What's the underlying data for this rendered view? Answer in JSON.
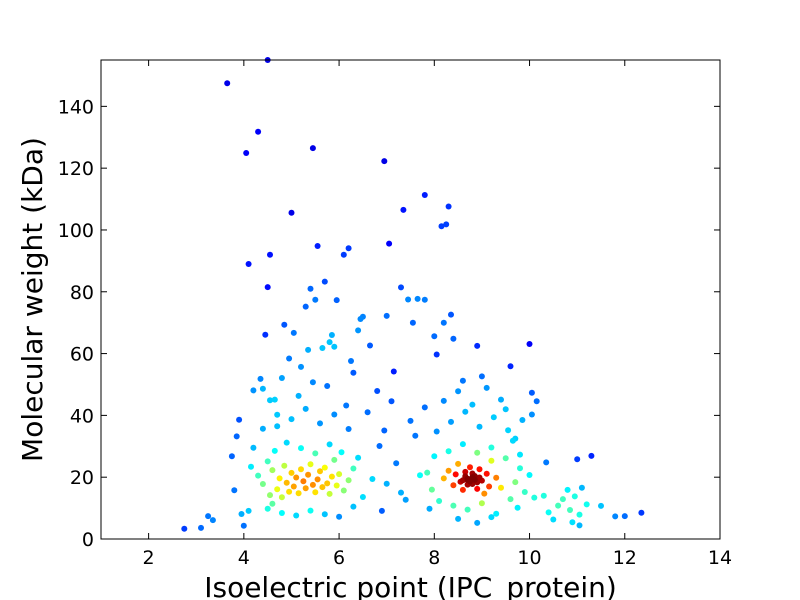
{
  "chart_data": {
    "type": "scatter",
    "title": "",
    "xlabel": "Isoelectric point (IPC_protein)",
    "ylabel": "Molecular weight (kDa)",
    "xlim": [
      1,
      14
    ],
    "ylim": [
      0,
      155
    ],
    "xticks": [
      2,
      4,
      6,
      8,
      10,
      12,
      14
    ],
    "yticks": [
      0,
      20,
      40,
      60,
      80,
      100,
      120,
      140
    ],
    "grid": false,
    "legend": "none",
    "color_note": "points colored by local density: dark red = densest, blue = sparsest",
    "points": [
      [
        2.75,
        3.3
      ],
      [
        3.1,
        3.6
      ],
      [
        3.25,
        7.4
      ],
      [
        3.35,
        6.1
      ],
      [
        3.65,
        147.5
      ],
      [
        3.75,
        26.8
      ],
      [
        3.8,
        15.8
      ],
      [
        3.85,
        33.2
      ],
      [
        3.9,
        38.6
      ],
      [
        3.95,
        8.1
      ],
      [
        4.0,
        4.3
      ],
      [
        4.05,
        124.9
      ],
      [
        4.1,
        89.0
      ],
      [
        4.1,
        9.1
      ],
      [
        4.15,
        23.4
      ],
      [
        4.2,
        48.1
      ],
      [
        4.2,
        29.5
      ],
      [
        4.3,
        131.8
      ],
      [
        4.35,
        51.8
      ],
      [
        4.4,
        48.6
      ],
      [
        4.4,
        35.7
      ],
      [
        4.45,
        66.1
      ],
      [
        4.5,
        155.0
      ],
      [
        4.5,
        81.5
      ],
      [
        4.55,
        92.0
      ],
      [
        4.6,
        11.4
      ],
      [
        4.65,
        45.1
      ],
      [
        4.7,
        40.2
      ],
      [
        4.8,
        52.1
      ],
      [
        4.85,
        69.3
      ],
      [
        4.95,
        58.4
      ],
      [
        5.0,
        105.6
      ],
      [
        5.05,
        66.7
      ],
      [
        5.2,
        55.7
      ],
      [
        5.3,
        75.2
      ],
      [
        5.35,
        61.2
      ],
      [
        5.4,
        81.0
      ],
      [
        5.45,
        126.5
      ],
      [
        5.5,
        77.4
      ],
      [
        5.55,
        94.8
      ],
      [
        5.65,
        61.8
      ],
      [
        5.7,
        83.3
      ],
      [
        5.8,
        63.7
      ],
      [
        5.85,
        66.0
      ],
      [
        5.9,
        62.2
      ],
      [
        5.95,
        77.3
      ],
      [
        6.1,
        92.0
      ],
      [
        6.2,
        94.1
      ],
      [
        6.25,
        57.6
      ],
      [
        6.3,
        53.8
      ],
      [
        6.4,
        67.5
      ],
      [
        6.45,
        71.2
      ],
      [
        6.5,
        71.9
      ],
      [
        6.65,
        62.6
      ],
      [
        6.8,
        47.9
      ],
      [
        6.9,
        9.1
      ],
      [
        6.95,
        122.3
      ],
      [
        7.0,
        72.2
      ],
      [
        7.05,
        95.6
      ],
      [
        7.15,
        54.2
      ],
      [
        7.3,
        81.4
      ],
      [
        7.35,
        106.5
      ],
      [
        7.45,
        77.5
      ],
      [
        7.55,
        70.0
      ],
      [
        7.65,
        77.7
      ],
      [
        7.8,
        111.3
      ],
      [
        7.8,
        77.4
      ],
      [
        8.0,
        65.6
      ],
      [
        8.05,
        59.7
      ],
      [
        8.15,
        101.2
      ],
      [
        8.2,
        70.0
      ],
      [
        8.25,
        101.8
      ],
      [
        8.3,
        107.6
      ],
      [
        8.35,
        72.6
      ],
      [
        8.4,
        64.8
      ],
      [
        8.9,
        62.5
      ],
      [
        9.6,
        55.9
      ],
      [
        9.7,
        32.5
      ],
      [
        9.8,
        27.3
      ],
      [
        10.0,
        63.1
      ],
      [
        10.05,
        47.3
      ],
      [
        10.05,
        40.3
      ],
      [
        10.15,
        44.6
      ],
      [
        10.3,
        14.0
      ],
      [
        10.35,
        24.8
      ],
      [
        10.4,
        8.6
      ],
      [
        10.5,
        6.3
      ],
      [
        10.6,
        10.8
      ],
      [
        10.7,
        12.9
      ],
      [
        10.8,
        15.9
      ],
      [
        10.85,
        9.4
      ],
      [
        10.9,
        5.4
      ],
      [
        10.95,
        13.8
      ],
      [
        11.0,
        25.8
      ],
      [
        11.05,
        7.9
      ],
      [
        11.05,
        4.4
      ],
      [
        11.1,
        16.6
      ],
      [
        11.2,
        11.2
      ],
      [
        11.3,
        26.9
      ],
      [
        11.5,
        10.7
      ],
      [
        11.8,
        7.3
      ],
      [
        12.0,
        7.4
      ],
      [
        12.35,
        8.5
      ],
      [
        4.3,
        20.5
      ],
      [
        4.4,
        17.8
      ],
      [
        4.5,
        25.1
      ],
      [
        4.55,
        14.2
      ],
      [
        4.6,
        22.3
      ],
      [
        4.7,
        16.1
      ],
      [
        4.75,
        19.6
      ],
      [
        4.8,
        13.5
      ],
      [
        4.85,
        23.7
      ],
      [
        4.9,
        18.2
      ],
      [
        4.95,
        15.3
      ],
      [
        5.0,
        21.4
      ],
      [
        5.05,
        17.0
      ],
      [
        5.1,
        19.9
      ],
      [
        5.15,
        14.8
      ],
      [
        5.2,
        22.6
      ],
      [
        5.25,
        18.7
      ],
      [
        5.3,
        16.4
      ],
      [
        5.35,
        20.8
      ],
      [
        5.4,
        24.2
      ],
      [
        5.45,
        17.5
      ],
      [
        5.5,
        15.1
      ],
      [
        5.55,
        19.3
      ],
      [
        5.6,
        21.9
      ],
      [
        5.65,
        16.8
      ],
      [
        5.7,
        23.1
      ],
      [
        5.75,
        18.0
      ],
      [
        5.8,
        14.6
      ],
      [
        5.85,
        20.2
      ],
      [
        5.9,
        25.6
      ],
      [
        5.95,
        17.3
      ],
      [
        6.0,
        21.0
      ],
      [
        6.1,
        15.7
      ],
      [
        6.2,
        19.0
      ],
      [
        6.3,
        22.8
      ],
      [
        4.65,
        28.5
      ],
      [
        4.9,
        31.2
      ],
      [
        5.2,
        29.4
      ],
      [
        5.5,
        27.7
      ],
      [
        5.8,
        30.6
      ],
      [
        6.05,
        28.1
      ],
      [
        4.5,
        9.8
      ],
      [
        4.8,
        8.4
      ],
      [
        5.1,
        7.6
      ],
      [
        5.4,
        9.2
      ],
      [
        5.7,
        8.0
      ],
      [
        6.0,
        7.2
      ],
      [
        6.3,
        10.5
      ],
      [
        4.7,
        36.5
      ],
      [
        5.0,
        38.8
      ],
      [
        5.3,
        42.1
      ],
      [
        5.6,
        37.4
      ],
      [
        5.9,
        40.3
      ],
      [
        6.2,
        35.6
      ],
      [
        4.55,
        44.9
      ],
      [
        5.15,
        46.3
      ],
      [
        5.75,
        49.5
      ],
      [
        6.15,
        43.2
      ],
      [
        5.45,
        50.7
      ],
      [
        6.4,
        26.3
      ],
      [
        6.5,
        13.6
      ],
      [
        6.7,
        19.4
      ],
      [
        6.85,
        30.1
      ],
      [
        7.0,
        17.9
      ],
      [
        7.2,
        24.5
      ],
      [
        7.4,
        12.7
      ],
      [
        7.6,
        33.4
      ],
      [
        7.7,
        20.6
      ],
      [
        6.6,
        41.0
      ],
      [
        7.1,
        44.6
      ],
      [
        7.5,
        38.2
      ],
      [
        6.95,
        35.1
      ],
      [
        7.3,
        15.0
      ],
      [
        8.2,
        19.6
      ],
      [
        8.3,
        22.1
      ],
      [
        8.4,
        17.4
      ],
      [
        8.45,
        20.9
      ],
      [
        8.5,
        24.3
      ],
      [
        8.55,
        18.5
      ],
      [
        8.6,
        15.9
      ],
      [
        8.65,
        21.7
      ],
      [
        8.7,
        19.1
      ],
      [
        8.75,
        23.2
      ],
      [
        8.8,
        17.8
      ],
      [
        8.85,
        20.4
      ],
      [
        8.9,
        16.2
      ],
      [
        8.95,
        22.6
      ],
      [
        9.0,
        18.9
      ],
      [
        9.05,
        14.7
      ],
      [
        9.1,
        21.1
      ],
      [
        9.15,
        17.0
      ],
      [
        9.2,
        25.3
      ],
      [
        9.3,
        19.8
      ],
      [
        9.4,
        16.6
      ],
      [
        8.7,
        19.5
      ],
      [
        8.8,
        20.0
      ],
      [
        8.75,
        18.6
      ],
      [
        8.85,
        19.2
      ],
      [
        8.65,
        20.3
      ],
      [
        8.9,
        18.3
      ],
      [
        8.6,
        19.0
      ],
      [
        8.8,
        21.2
      ],
      [
        8.7,
        17.6
      ],
      [
        8.95,
        19.9
      ],
      [
        8.0,
        26.8
      ],
      [
        8.3,
        28.4
      ],
      [
        8.6,
        30.7
      ],
      [
        8.9,
        27.9
      ],
      [
        9.2,
        29.6
      ],
      [
        9.5,
        26.1
      ],
      [
        8.1,
        12.3
      ],
      [
        8.4,
        10.8
      ],
      [
        8.7,
        9.5
      ],
      [
        9.0,
        11.6
      ],
      [
        9.3,
        8.2
      ],
      [
        9.6,
        12.9
      ],
      [
        8.5,
        6.5
      ],
      [
        8.9,
        5.2
      ],
      [
        9.2,
        7.1
      ],
      [
        8.05,
        34.8
      ],
      [
        8.35,
        37.9
      ],
      [
        8.65,
        41.2
      ],
      [
        8.95,
        36.3
      ],
      [
        9.25,
        39.4
      ],
      [
        9.55,
        35.2
      ],
      [
        8.2,
        44.7
      ],
      [
        8.5,
        47.8
      ],
      [
        8.8,
        43.5
      ],
      [
        9.1,
        48.9
      ],
      [
        9.4,
        45.1
      ],
      [
        8.6,
        51.2
      ],
      [
        9.0,
        52.6
      ],
      [
        7.85,
        21.5
      ],
      [
        7.95,
        16.0
      ],
      [
        9.7,
        18.4
      ],
      [
        9.8,
        22.9
      ],
      [
        9.9,
        15.2
      ],
      [
        9.75,
        10.1
      ],
      [
        10.0,
        20.7
      ],
      [
        9.65,
        31.8
      ],
      [
        9.85,
        38.5
      ],
      [
        7.9,
        9.8
      ],
      [
        10.1,
        13.4
      ],
      [
        7.8,
        42.6
      ],
      [
        9.5,
        42.0
      ]
    ]
  }
}
